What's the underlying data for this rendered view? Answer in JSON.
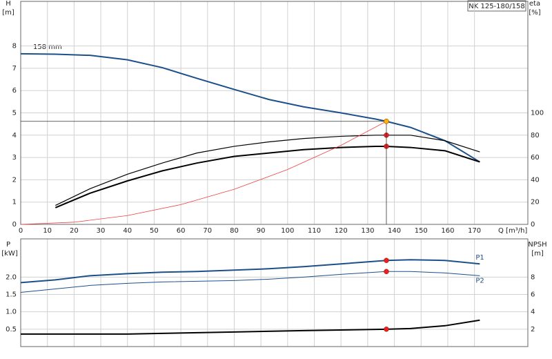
{
  "chart_data": [
    {
      "type": "line",
      "title": "NK 125-180/158",
      "annotation": "158 mm",
      "y_label": "H",
      "y_unit": "[m]",
      "y2_label": "eta",
      "y2_unit": "[%]",
      "x_label": "Q [m³/h]",
      "xlim": [
        0,
        190
      ],
      "xticks": [
        0,
        10,
        20,
        30,
        40,
        50,
        60,
        70,
        80,
        90,
        100,
        110,
        120,
        130,
        140,
        150,
        160,
        170
      ],
      "ylim": [
        0,
        10
      ],
      "yticks": [
        0,
        1,
        2,
        3,
        4,
        5,
        6,
        7,
        8
      ],
      "y2lim": [
        0,
        200
      ],
      "y2ticks": [
        0,
        20,
        40,
        60,
        80,
        100
      ],
      "grid": true,
      "duty_q": 137,
      "series": [
        {
          "color": "#1b4f8a",
          "width": 2,
          "axis": "y",
          "x": [
            0,
            13,
            26,
            40,
            53,
            66,
            80,
            93,
            106,
            120,
            133,
            137,
            146,
            159,
            172
          ],
          "values": [
            7.65,
            7.63,
            7.58,
            7.38,
            7.03,
            6.55,
            6.05,
            5.6,
            5.27,
            5.0,
            4.72,
            4.62,
            4.35,
            3.75,
            2.8
          ]
        },
        {
          "color": "#000000",
          "width": 1.2,
          "axis": "y2",
          "marker_color": "#e82020",
          "x": [
            13,
            26,
            40,
            53,
            66,
            80,
            93,
            106,
            120,
            133,
            137,
            146,
            159,
            172
          ],
          "values": [
            17,
            32,
            45,
            55,
            64,
            70,
            74,
            77,
            79,
            80,
            80,
            80,
            75,
            65
          ]
        },
        {
          "color": "#000000",
          "width": 2,
          "axis": "y2",
          "marker_color": "#e82020",
          "x": [
            13,
            26,
            40,
            53,
            66,
            80,
            93,
            106,
            120,
            133,
            137,
            146,
            159,
            172
          ],
          "values": [
            15,
            28,
            39,
            48,
            55,
            61,
            64,
            67,
            69,
            70,
            70,
            69,
            66,
            56
          ]
        },
        {
          "color": "#f04040",
          "width": 0.8,
          "axis": "y",
          "marker_color": "#f5b800",
          "guide": true,
          "x": [
            0,
            20,
            40,
            60,
            80,
            100,
            120,
            137
          ],
          "values": [
            0,
            0.098,
            0.394,
            0.886,
            1.575,
            2.461,
            3.545,
            4.62
          ]
        }
      ]
    },
    {
      "type": "line",
      "y_label": "P",
      "y_unit": "[kW]",
      "y2_label": "NPSH",
      "y2_unit": "[m]",
      "xlim": [
        0,
        190
      ],
      "ylim": [
        0,
        3.1
      ],
      "yticks": [
        0.5,
        {
          "value": 1,
          "label": "1.0"
        },
        1.5,
        {
          "value": 2,
          "label": "2.0"
        }
      ],
      "y2lim": [
        0,
        12.4
      ],
      "y2ticks": [
        2,
        4,
        6,
        8
      ],
      "grid": true,
      "duty_q": 137,
      "series": [
        {
          "name": "P1",
          "color": "#1b4f8a",
          "width": 2,
          "axis": "y",
          "marker_color": "#e82020",
          "x": [
            0,
            13,
            26,
            40,
            53,
            66,
            80,
            93,
            106,
            120,
            137,
            146,
            159,
            172
          ],
          "values": [
            1.84,
            1.92,
            2.04,
            2.1,
            2.14,
            2.16,
            2.2,
            2.24,
            2.3,
            2.38,
            2.48,
            2.5,
            2.48,
            2.38
          ]
        },
        {
          "name": "P2",
          "color": "#1b4f8a",
          "width": 1,
          "axis": "y",
          "marker_color": "#e82020",
          "x": [
            0,
            26,
            40,
            53,
            80,
            93,
            106,
            120,
            137,
            146,
            159,
            172
          ],
          "values": [
            1.56,
            1.76,
            1.82,
            1.86,
            1.9,
            1.94,
            2.0,
            2.08,
            2.16,
            2.16,
            2.12,
            2.04
          ]
        },
        {
          "color": "#000000",
          "width": 2,
          "axis": "y2",
          "marker_color": "#e82020",
          "x": [
            0,
            40,
            53,
            80,
            106,
            137,
            146,
            159,
            172
          ],
          "values": [
            1.44,
            1.44,
            1.52,
            1.68,
            1.84,
            2.0,
            2.08,
            2.4,
            3.04
          ]
        }
      ]
    }
  ]
}
